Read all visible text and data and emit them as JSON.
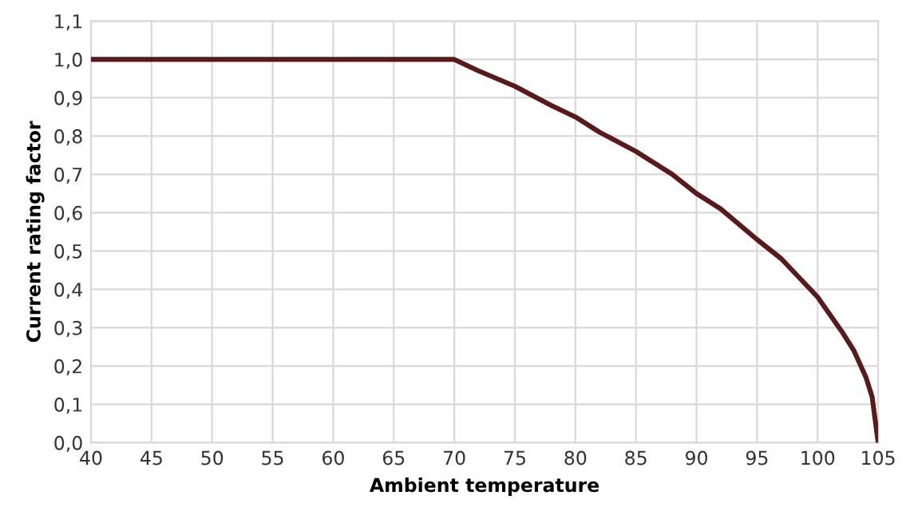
{
  "chart_data": {
    "type": "line",
    "xlabel": "Ambient temperature",
    "ylabel": "Current rating factor",
    "x": [
      40,
      70,
      72,
      75,
      78,
      80,
      82,
      85,
      88,
      90,
      92,
      95,
      97,
      100,
      102,
      103,
      104,
      104.5,
      105
    ],
    "series": [
      {
        "color": "#5a1a1a",
        "values": [
          1,
          1,
          0.97,
          0.93,
          0.88,
          0.85,
          0.81,
          0.76,
          0.7,
          0.65,
          0.61,
          0.53,
          0.48,
          0.38,
          0.29,
          0.24,
          0.17,
          0.12,
          0
        ]
      }
    ],
    "xlim": [
      40,
      105
    ],
    "xticks": [
      40,
      45,
      50,
      55,
      60,
      65,
      70,
      75,
      80,
      85,
      90,
      95,
      100,
      105
    ],
    "ylim": [
      0,
      1.1
    ],
    "yticks": [
      {
        "value": 0,
        "label": "0,0"
      },
      {
        "value": 0.1,
        "label": "0,1"
      },
      {
        "value": 0.2,
        "label": "0,2"
      },
      {
        "value": 0.3,
        "label": "0,3"
      },
      {
        "value": 0.4,
        "label": "0,4"
      },
      {
        "value": 0.5,
        "label": "0,5"
      },
      {
        "value": 0.6,
        "label": "0,6"
      },
      {
        "value": 0.7,
        "label": "0,7"
      },
      {
        "value": 0.8,
        "label": "0,8"
      },
      {
        "value": 0.9,
        "label": "0,9"
      },
      {
        "value": 1.0,
        "label": "1,0"
      },
      {
        "value": 1.1,
        "label": "1,1"
      }
    ],
    "grid": true,
    "marker": "none",
    "line_style": "solid"
  }
}
